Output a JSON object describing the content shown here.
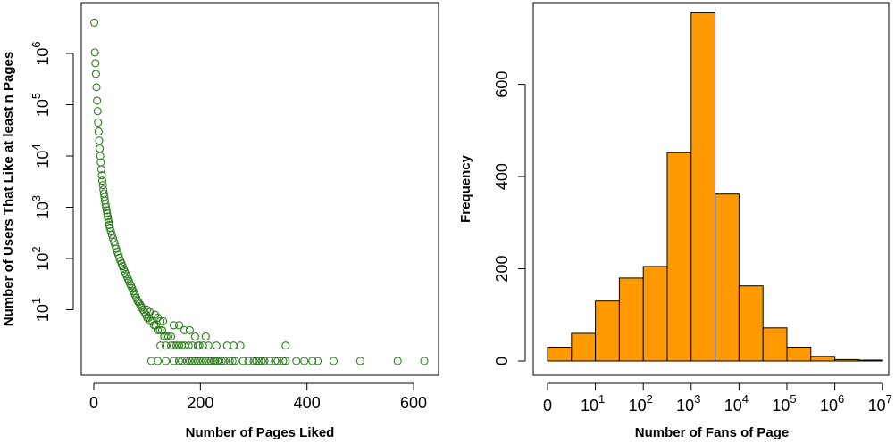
{
  "chart_data": [
    {
      "type": "scatter",
      "xlabel": "Number of Pages Liked",
      "ylabel": "Number of Users That Like at least n Pages",
      "xlim": [
        0,
        650
      ],
      "x_ticks": [
        0,
        200,
        400,
        600
      ],
      "y_scale": "log",
      "y_ticks": [
        {
          "base": "10",
          "exp": "1"
        },
        {
          "base": "10",
          "exp": "2"
        },
        {
          "base": "10",
          "exp": "3"
        },
        {
          "base": "10",
          "exp": "4"
        },
        {
          "base": "10",
          "exp": "5"
        },
        {
          "base": "10",
          "exp": "6"
        }
      ],
      "ylim": [
        1,
        6000000
      ],
      "marker": "open-circle",
      "color": "#2e7d1f",
      "points": [
        [
          1,
          4000000
        ],
        [
          2,
          1050000
        ],
        [
          3,
          650000
        ],
        [
          4,
          400000
        ],
        [
          5,
          220000
        ],
        [
          6,
          120000
        ],
        [
          7,
          75000
        ],
        [
          8,
          45000
        ],
        [
          9,
          30000
        ],
        [
          10,
          20000
        ],
        [
          11,
          14000
        ],
        [
          12,
          10000
        ],
        [
          13,
          7500
        ],
        [
          14,
          5500
        ],
        [
          15,
          4200
        ],
        [
          16,
          3300
        ],
        [
          17,
          2700
        ],
        [
          18,
          2200
        ],
        [
          19,
          1850
        ],
        [
          20,
          1600
        ],
        [
          21,
          1350
        ],
        [
          22,
          1150
        ],
        [
          23,
          1000
        ],
        [
          24,
          870
        ],
        [
          25,
          760
        ],
        [
          26,
          660
        ],
        [
          27,
          580
        ],
        [
          28,
          510
        ],
        [
          29,
          450
        ],
        [
          30,
          400
        ],
        [
          32,
          340
        ],
        [
          34,
          290
        ],
        [
          36,
          245
        ],
        [
          38,
          210
        ],
        [
          40,
          180
        ],
        [
          42,
          155
        ],
        [
          44,
          135
        ],
        [
          46,
          118
        ],
        [
          48,
          103
        ],
        [
          50,
          90
        ],
        [
          52,
          80
        ],
        [
          54,
          71
        ],
        [
          56,
          63
        ],
        [
          58,
          56
        ],
        [
          60,
          50
        ],
        [
          62,
          45
        ],
        [
          64,
          40
        ],
        [
          66,
          36
        ],
        [
          68,
          32
        ],
        [
          70,
          29
        ],
        [
          72,
          26
        ],
        [
          74,
          23
        ],
        [
          76,
          21
        ],
        [
          78,
          19
        ],
        [
          80,
          17
        ],
        [
          82,
          15
        ],
        [
          84,
          14
        ],
        [
          86,
          13
        ],
        [
          88,
          12
        ],
        [
          90,
          11
        ],
        [
          92,
          10
        ],
        [
          95,
          9
        ],
        [
          98,
          8
        ],
        [
          100,
          7
        ],
        [
          103,
          7
        ],
        [
          106,
          6
        ],
        [
          110,
          6
        ],
        [
          113,
          5
        ],
        [
          116,
          5
        ],
        [
          120,
          4
        ],
        [
          124,
          4
        ],
        [
          128,
          4
        ],
        [
          132,
          3
        ],
        [
          136,
          3
        ],
        [
          140,
          3
        ],
        [
          145,
          3
        ],
        [
          150,
          2
        ],
        [
          155,
          2
        ],
        [
          160,
          2
        ],
        [
          165,
          2
        ],
        [
          170,
          2
        ],
        [
          178,
          2
        ],
        [
          185,
          2
        ],
        [
          195,
          2
        ],
        [
          205,
          2
        ],
        [
          215,
          2
        ],
        [
          230,
          2
        ],
        [
          250,
          2
        ],
        [
          262,
          2
        ],
        [
          275,
          2
        ],
        [
          360,
          2
        ],
        [
          100,
          10
        ],
        [
          105,
          9
        ],
        [
          115,
          8
        ],
        [
          120,
          7
        ],
        [
          125,
          6
        ],
        [
          130,
          6
        ],
        [
          150,
          5
        ],
        [
          160,
          5
        ],
        [
          170,
          4
        ],
        [
          180,
          4
        ],
        [
          190,
          3
        ],
        [
          210,
          3
        ],
        [
          125,
          2
        ],
        [
          135,
          2
        ],
        [
          145,
          2
        ],
        [
          198,
          2
        ],
        [
          108,
          1
        ],
        [
          120,
          1
        ],
        [
          135,
          1
        ],
        [
          150,
          1
        ],
        [
          160,
          1
        ],
        [
          165,
          1
        ],
        [
          175,
          1
        ],
        [
          180,
          1
        ],
        [
          185,
          1
        ],
        [
          190,
          1
        ],
        [
          195,
          1
        ],
        [
          200,
          1
        ],
        [
          205,
          1
        ],
        [
          210,
          1
        ],
        [
          215,
          1
        ],
        [
          220,
          1
        ],
        [
          225,
          1
        ],
        [
          228,
          1
        ],
        [
          232,
          1
        ],
        [
          236,
          1
        ],
        [
          240,
          1
        ],
        [
          245,
          1
        ],
        [
          255,
          1
        ],
        [
          260,
          1
        ],
        [
          265,
          1
        ],
        [
          280,
          1
        ],
        [
          290,
          1
        ],
        [
          300,
          1
        ],
        [
          305,
          1
        ],
        [
          310,
          1
        ],
        [
          315,
          1
        ],
        [
          320,
          1
        ],
        [
          330,
          1
        ],
        [
          340,
          1
        ],
        [
          345,
          1
        ],
        [
          355,
          1
        ],
        [
          360,
          1
        ],
        [
          380,
          1
        ],
        [
          395,
          1
        ],
        [
          410,
          1
        ],
        [
          420,
          1
        ],
        [
          450,
          1
        ],
        [
          500,
          1
        ],
        [
          570,
          1
        ],
        [
          620,
          1
        ]
      ]
    },
    {
      "type": "bar",
      "xlabel": "Number of Fans of Page",
      "ylabel": "Frequency",
      "ylim": [
        0,
        750
      ],
      "y_ticks": [
        "0",
        "200",
        "400",
        "600"
      ],
      "x_ticks": [
        {
          "base": "0",
          "exp": ""
        },
        {
          "base": "10",
          "exp": "1"
        },
        {
          "base": "10",
          "exp": "2"
        },
        {
          "base": "10",
          "exp": "3"
        },
        {
          "base": "10",
          "exp": "4"
        },
        {
          "base": "10",
          "exp": "5"
        },
        {
          "base": "10",
          "exp": "6"
        },
        {
          "base": "10",
          "exp": "7"
        }
      ],
      "bar_color": "#ff9900",
      "bins_per_decade_tick": 2,
      "values": [
        30,
        60,
        130,
        180,
        205,
        452,
        755,
        362,
        163,
        72,
        30,
        10,
        3,
        2
      ]
    }
  ]
}
